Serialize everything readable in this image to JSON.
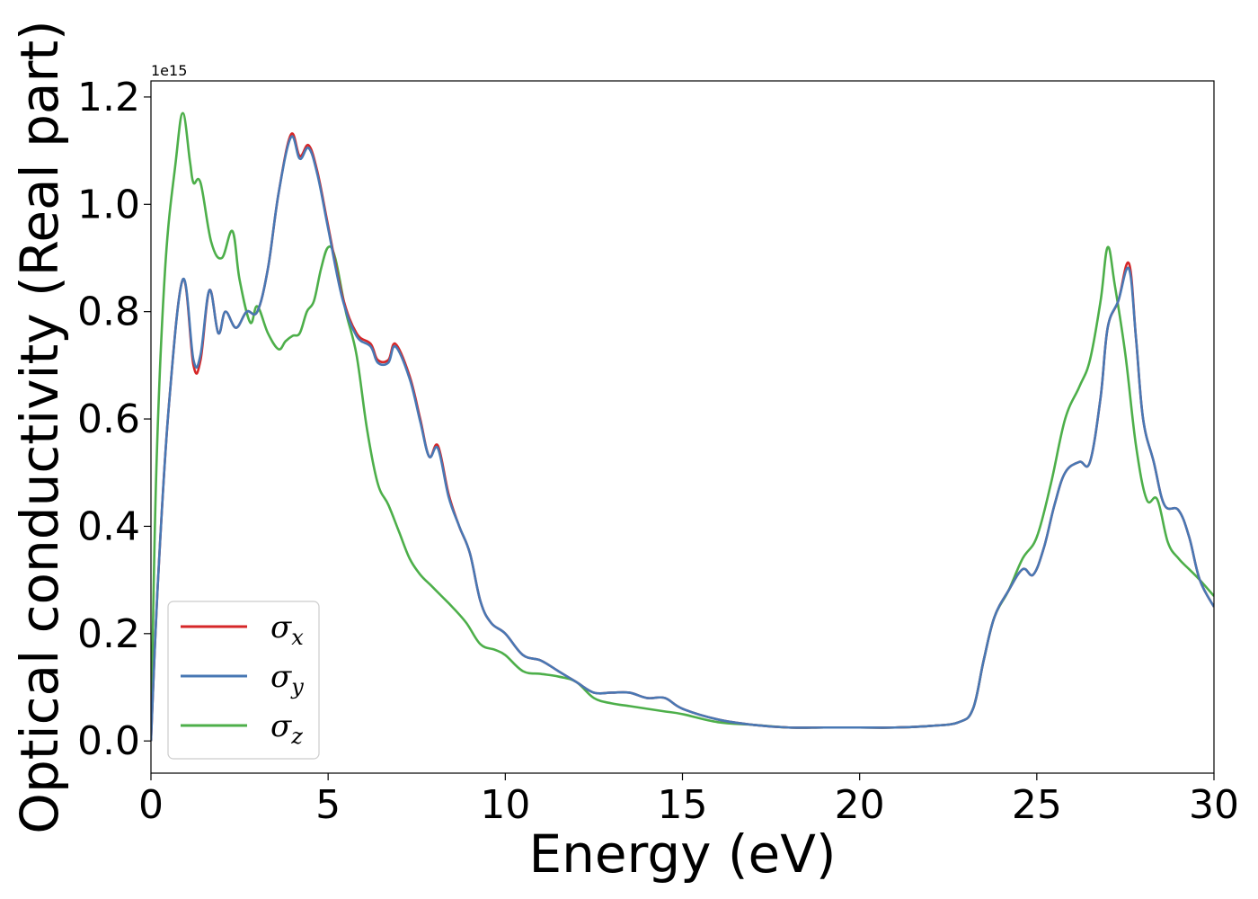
{
  "chart_data": {
    "type": "line",
    "title": "",
    "xlabel": "Energy (eV)",
    "ylabel": "Optical conductivity (Real part)",
    "y_offset_label": "1e15",
    "xlim": [
      0,
      30
    ],
    "ylim": [
      -0.06,
      1.23
    ],
    "xticks": [
      0,
      5,
      10,
      15,
      20,
      25,
      30
    ],
    "xtick_labels": [
      "0",
      "5",
      "10",
      "15",
      "20",
      "25",
      "30"
    ],
    "yticks": [
      0.0,
      0.2,
      0.4,
      0.6,
      0.8,
      1.0,
      1.2
    ],
    "ytick_labels": [
      "0.0",
      "0.2",
      "0.4",
      "0.6",
      "0.8",
      "1.0",
      "1.2"
    ],
    "grid": false,
    "legend_position": "lower-left",
    "series": [
      {
        "name": "σ",
        "subscript": "x",
        "color": "#d62728",
        "x": [
          0,
          0.2,
          0.5,
          0.9,
          1.2,
          1.4,
          1.65,
          1.9,
          2.1,
          2.4,
          2.7,
          3.0,
          3.3,
          3.6,
          3.95,
          4.2,
          4.45,
          4.7,
          5.0,
          5.4,
          5.8,
          6.2,
          6.4,
          6.7,
          6.9,
          7.3,
          7.6,
          7.85,
          8.1,
          8.4,
          8.7,
          9.0,
          9.3,
          9.6,
          10.0,
          10.5,
          11.0,
          11.5,
          12.0,
          12.5,
          13.0,
          13.5,
          14.0,
          14.5,
          15.0,
          16.0,
          17.0,
          18.0,
          19.0,
          20.0,
          21.0,
          22.0,
          22.8,
          23.2,
          23.5,
          23.8,
          24.2,
          24.6,
          24.9,
          25.2,
          25.5,
          25.8,
          26.2,
          26.5,
          26.8,
          27.0,
          27.3,
          27.6,
          27.8,
          28.0,
          28.3,
          28.6,
          29.0,
          29.3,
          29.6,
          30.0
        ],
        "y": [
          0.0,
          0.3,
          0.62,
          0.86,
          0.7,
          0.71,
          0.84,
          0.76,
          0.8,
          0.77,
          0.8,
          0.8,
          0.88,
          1.02,
          1.13,
          1.09,
          1.11,
          1.06,
          0.96,
          0.83,
          0.76,
          0.74,
          0.71,
          0.71,
          0.74,
          0.68,
          0.6,
          0.53,
          0.55,
          0.46,
          0.4,
          0.35,
          0.26,
          0.22,
          0.2,
          0.16,
          0.15,
          0.13,
          0.11,
          0.09,
          0.09,
          0.09,
          0.08,
          0.08,
          0.06,
          0.04,
          0.03,
          0.025,
          0.025,
          0.025,
          0.025,
          0.028,
          0.035,
          0.06,
          0.15,
          0.23,
          0.28,
          0.32,
          0.31,
          0.36,
          0.44,
          0.5,
          0.52,
          0.52,
          0.64,
          0.77,
          0.82,
          0.89,
          0.75,
          0.6,
          0.52,
          0.44,
          0.43,
          0.38,
          0.3,
          0.25
        ]
      },
      {
        "name": "σ",
        "subscript": "y",
        "color": "#4878b4",
        "x": [
          0,
          0.2,
          0.5,
          0.9,
          1.2,
          1.4,
          1.65,
          1.9,
          2.1,
          2.4,
          2.7,
          3.0,
          3.3,
          3.6,
          3.95,
          4.2,
          4.45,
          4.7,
          5.0,
          5.4,
          5.8,
          6.2,
          6.4,
          6.7,
          6.9,
          7.3,
          7.6,
          7.85,
          8.1,
          8.4,
          8.7,
          9.0,
          9.3,
          9.6,
          10.0,
          10.5,
          11.0,
          11.5,
          12.0,
          12.5,
          13.0,
          13.5,
          14.0,
          14.5,
          15.0,
          16.0,
          17.0,
          18.0,
          19.0,
          20.0,
          21.0,
          22.0,
          22.8,
          23.2,
          23.5,
          23.8,
          24.2,
          24.6,
          24.9,
          25.2,
          25.5,
          25.8,
          26.2,
          26.5,
          26.8,
          27.0,
          27.3,
          27.6,
          27.8,
          28.0,
          28.3,
          28.6,
          29.0,
          29.3,
          29.6,
          30.0
        ],
        "y": [
          0.0,
          0.3,
          0.62,
          0.86,
          0.71,
          0.72,
          0.84,
          0.76,
          0.8,
          0.77,
          0.8,
          0.8,
          0.88,
          1.02,
          1.125,
          1.085,
          1.105,
          1.055,
          0.955,
          0.825,
          0.755,
          0.735,
          0.705,
          0.705,
          0.735,
          0.675,
          0.595,
          0.53,
          0.545,
          0.455,
          0.4,
          0.35,
          0.26,
          0.22,
          0.2,
          0.16,
          0.15,
          0.13,
          0.11,
          0.09,
          0.09,
          0.09,
          0.08,
          0.08,
          0.06,
          0.04,
          0.03,
          0.025,
          0.025,
          0.025,
          0.025,
          0.028,
          0.035,
          0.06,
          0.15,
          0.23,
          0.28,
          0.32,
          0.31,
          0.36,
          0.44,
          0.5,
          0.52,
          0.52,
          0.64,
          0.77,
          0.82,
          0.88,
          0.75,
          0.6,
          0.52,
          0.44,
          0.43,
          0.38,
          0.3,
          0.25
        ]
      },
      {
        "name": "σ",
        "subscript": "z",
        "color": "#4daf4a",
        "x": [
          0,
          0.15,
          0.4,
          0.7,
          0.9,
          1.1,
          1.2,
          1.4,
          1.7,
          2.0,
          2.3,
          2.5,
          2.8,
          3.0,
          3.3,
          3.6,
          3.8,
          4.0,
          4.2,
          4.4,
          4.6,
          4.8,
          5.0,
          5.2,
          5.5,
          5.8,
          6.1,
          6.4,
          6.7,
          7.0,
          7.3,
          7.6,
          7.9,
          8.2,
          8.5,
          8.9,
          9.3,
          9.7,
          10.0,
          10.5,
          11.0,
          11.5,
          12.0,
          12.5,
          13.0,
          13.5,
          14.0,
          14.5,
          15.0,
          16.0,
          17.0,
          18.0,
          19.0,
          20.0,
          21.0,
          22.0,
          22.8,
          23.2,
          23.5,
          23.8,
          24.2,
          24.6,
          25.0,
          25.4,
          25.8,
          26.2,
          26.5,
          26.8,
          27.0,
          27.2,
          27.5,
          27.8,
          28.1,
          28.4,
          28.7,
          29.0,
          29.3,
          29.6,
          30.0
        ],
        "y": [
          0.0,
          0.5,
          0.88,
          1.08,
          1.17,
          1.08,
          1.04,
          1.04,
          0.93,
          0.9,
          0.95,
          0.86,
          0.78,
          0.81,
          0.76,
          0.73,
          0.745,
          0.755,
          0.76,
          0.8,
          0.82,
          0.88,
          0.92,
          0.9,
          0.8,
          0.72,
          0.58,
          0.48,
          0.44,
          0.39,
          0.34,
          0.31,
          0.29,
          0.27,
          0.25,
          0.22,
          0.18,
          0.17,
          0.16,
          0.13,
          0.125,
          0.12,
          0.11,
          0.08,
          0.07,
          0.065,
          0.06,
          0.055,
          0.05,
          0.035,
          0.03,
          0.025,
          0.025,
          0.025,
          0.025,
          0.028,
          0.035,
          0.06,
          0.15,
          0.23,
          0.28,
          0.34,
          0.38,
          0.48,
          0.6,
          0.66,
          0.71,
          0.82,
          0.92,
          0.85,
          0.72,
          0.55,
          0.45,
          0.45,
          0.37,
          0.34,
          0.32,
          0.3,
          0.27
        ]
      }
    ]
  }
}
